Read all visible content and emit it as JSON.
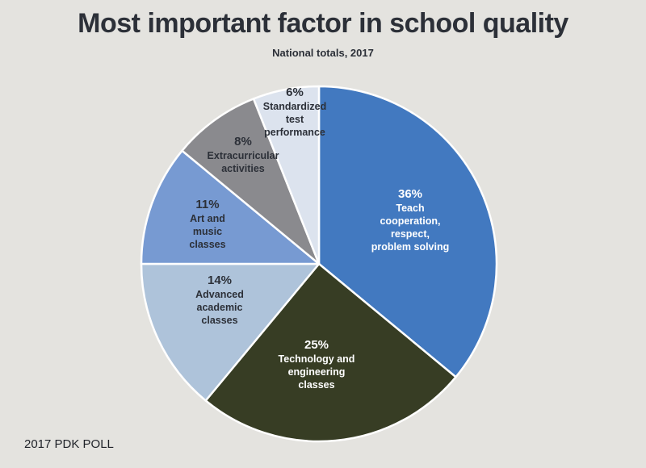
{
  "title": "Most important factor in school quality",
  "subtitle": "National totals, 2017",
  "source": "2017 PDK POLL",
  "colors": {
    "background": "#e4e3df",
    "slice_1": "#4279c0",
    "slice_2": "#373d24",
    "slice_3": "#aec3da",
    "slice_4": "#779ad2",
    "slice_5": "#8a8a8e",
    "slice_6": "#dce3ee"
  },
  "chart_data": {
    "type": "pie",
    "title": "Most important factor in school quality",
    "subtitle": "National totals, 2017",
    "start": "12 o'clock",
    "direction": "clockwise",
    "slices": [
      {
        "percent_label": "36%",
        "label_lines": [
          "Teach",
          "cooperation,",
          "respect,",
          "problem solving"
        ],
        "value": 36,
        "color": "#4279c0",
        "text_color": "#ffffff"
      },
      {
        "percent_label": "25%",
        "label_lines": [
          "Technology and",
          "engineering",
          "classes"
        ],
        "value": 25,
        "color": "#373d24",
        "text_color": "#ffffff"
      },
      {
        "percent_label": "14%",
        "label_lines": [
          "Advanced",
          "academic",
          "classes"
        ],
        "value": 14,
        "color": "#aec3da",
        "text_color": "#2c3038"
      },
      {
        "percent_label": "11%",
        "label_lines": [
          "Art and",
          "music",
          "classes"
        ],
        "value": 11,
        "color": "#779ad2",
        "text_color": "#2c3038"
      },
      {
        "percent_label": "8%",
        "label_lines": [
          "Extracurricular",
          "activities"
        ],
        "value": 8,
        "color": "#8a8a8e",
        "text_color": "#2c3038"
      },
      {
        "percent_label": "6%",
        "label_lines": [
          "Standardized",
          "test",
          "performance"
        ],
        "value": 6,
        "color": "#dce3ee",
        "text_color": "#2c3038"
      }
    ]
  }
}
